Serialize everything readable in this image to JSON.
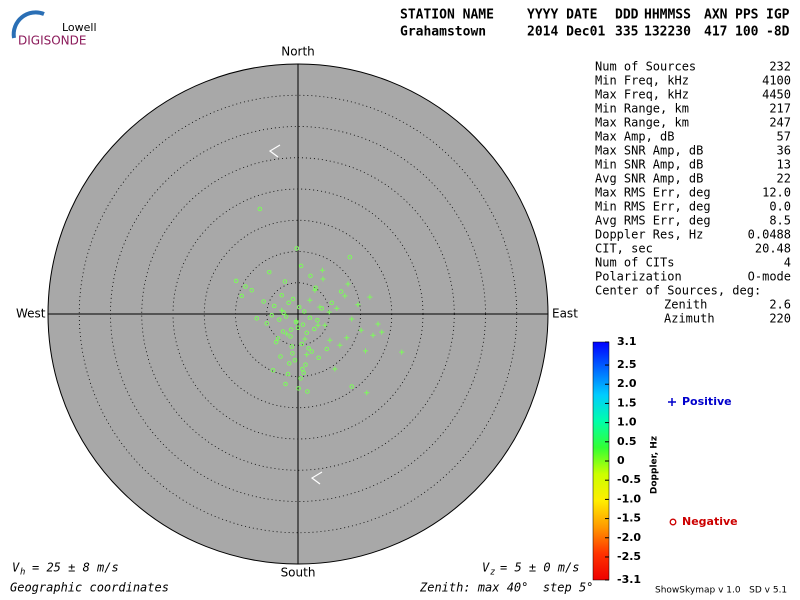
{
  "logo": {
    "top": "Lowell",
    "bottom": "DIGISONDE"
  },
  "header": {
    "columns": [
      "STATION NAME",
      "YYYY DATE",
      "DDD",
      "HHMMSS",
      "AXN",
      "PPS",
      "IGP"
    ],
    "values": [
      "Grahamstown",
      "2014 Dec01",
      "335",
      "132230",
      "417",
      "100",
      "-8D"
    ]
  },
  "stats": {
    "rows": [
      [
        "Num of Sources",
        "232"
      ],
      [
        "Min Freq, kHz",
        "4100"
      ],
      [
        "Max Freq, kHz",
        "4450"
      ],
      [
        "Min Range, km",
        "217"
      ],
      [
        "Max Range, km",
        "247"
      ],
      [
        "Max Amp, dB",
        "57"
      ],
      [
        "Max SNR Amp, dB",
        "36"
      ],
      [
        "Min SNR Amp, dB",
        "13"
      ],
      [
        "Avg SNR Amp, dB",
        "22"
      ],
      [
        "Max RMS Err, deg",
        "12.0"
      ],
      [
        "Min RMS Err, deg",
        "0.0"
      ],
      [
        "Avg RMS Err, deg",
        "8.5"
      ],
      [
        "Doppler Res, Hz",
        "0.0488"
      ],
      [
        "CIT, sec",
        "20.48"
      ],
      [
        "Num of CITs",
        "4"
      ],
      [
        "Polarization",
        "O-mode"
      ]
    ],
    "center_title": "Center of Sources, deg:",
    "center_rows": [
      [
        "Zenith",
        "2.6"
      ],
      [
        "Azimuth",
        "220"
      ]
    ]
  },
  "footer": {
    "vh_symbol": "V",
    "vh_sub": "h",
    "vh_text": "= 25 ± 8 m/s",
    "vz_symbol": "V",
    "vz_sub": "z",
    "vz_text": "= 5 ± 0 m/s",
    "coordinates": "Geographic coordinates",
    "zenith": "Zenith: max 40°  step 5°",
    "version": "ShowSkymap v 1.0   SD v 5.1"
  },
  "chart_data": {
    "type": "skymap",
    "directions": {
      "north": "North",
      "south": "South",
      "east": "East",
      "west": "West"
    },
    "zlim": [
      0,
      40
    ],
    "zticks": [
      5,
      10,
      15,
      20,
      25,
      30,
      35,
      40
    ],
    "background": "#a8a8a8",
    "series": [
      {
        "name": "Positive",
        "color": "#0000cc",
        "mark_color": "#7cfc5a",
        "x": [
          4.0,
          7.5,
          11.5,
          12.8,
          16.6,
          11.0,
          5.9,
          6.7,
          8.6,
          10.1,
          5.0,
          3.2,
          1.9,
          -0.3,
          -1.8,
          5.1,
          7.8,
          12.0,
          2.7,
          3.5,
          1.4,
          9.6,
          1.1,
          4.3,
          8.0,
          13.4,
          6.2,
          -2.6,
          10.8,
          3.9
        ],
        "y": [
          5.6,
          2.9,
          2.7,
          -1.6,
          -6.1,
          -12.6,
          -8.8,
          -5.0,
          -0.8,
          -2.6,
          0.3,
          -1.8,
          2.2,
          -1.1,
          -3.2,
          -4.2,
          -3.8,
          -3.4,
          3.8,
          1.1,
          -6.5,
          1.5,
          -4.0,
          -1.8,
          4.8,
          -2.9,
          0.9,
          0.6,
          -5.9,
          7.0
        ]
      },
      {
        "name": "Negative",
        "color": "#cc0000",
        "mark_color": "#7cfc5a",
        "x": [
          -6.1,
          8.3,
          0.5,
          -9.9,
          -9.0,
          -4.6,
          -2.1,
          -8.4,
          -5.5,
          -3.8,
          -2.6,
          -1.5,
          -0.8,
          0.2,
          1.0,
          -4.2,
          -3.0,
          -1.9,
          -0.3,
          0.8,
          1.9,
          3.1,
          -5.0,
          -2.4,
          -1.2,
          0.0,
          1.4,
          2.6,
          -3.5,
          -1.0,
          0.6,
          2.2,
          -2.8,
          -0.5,
          1.2,
          -4.0,
          -1.6,
          0.4,
          -3.2,
          -0.9,
          1.7,
          -2.0,
          0.1,
          -1.4,
          0.9,
          3.8,
          5.4,
          6.9,
          4.6,
          2.8,
          -6.6,
          -7.4,
          2.0,
          -0.2,
          1.5,
          -2.3,
          0.7,
          -1.1,
          3.3,
          8.6
        ],
        "y": [
          16.8,
          9.1,
          7.7,
          5.3,
          2.9,
          6.7,
          5.2,
          4.4,
          2.0,
          1.3,
          3.0,
          1.8,
          2.4,
          1.1,
          0.4,
          -0.2,
          -0.9,
          -0.4,
          -1.3,
          -1.7,
          -0.6,
          -1.0,
          -1.5,
          -2.8,
          -3.6,
          -2.2,
          -3.0,
          -2.4,
          -4.5,
          -5.2,
          -4.8,
          -6.0,
          -6.8,
          -7.4,
          -8.1,
          -9.0,
          -9.6,
          -10.3,
          -3.9,
          -6.3,
          -5.5,
          -11.2,
          -11.9,
          -7.9,
          -9.4,
          0.9,
          1.8,
          3.6,
          -5.6,
          4.2,
          -0.7,
          3.8,
          6.1,
          10.5,
          -12.4,
          0.2,
          -8.8,
          -2.5,
          -7.0,
          -11.6
        ]
      }
    ],
    "colorbar": {
      "label": "Doppler, Hz",
      "lim": [
        -3.1,
        3.1
      ],
      "colors": [
        "#0000ff",
        "#0066ff",
        "#00ccff",
        "#00ffaa",
        "#33ff33",
        "#ccff00",
        "#ffee00",
        "#ff9900",
        "#ff3300",
        "#ee0000"
      ],
      "ticks": [
        3.1,
        2.5,
        {
          "value": 2,
          "label": "2.0"
        },
        1.5,
        {
          "value": 1,
          "label": "1.0"
        },
        0.5,
        0,
        -0.5,
        {
          "value": -1,
          "label": "-1.0"
        },
        -1.5,
        {
          "value": -2,
          "label": "-2.0"
        },
        -2.5,
        -3.1
      ]
    }
  }
}
